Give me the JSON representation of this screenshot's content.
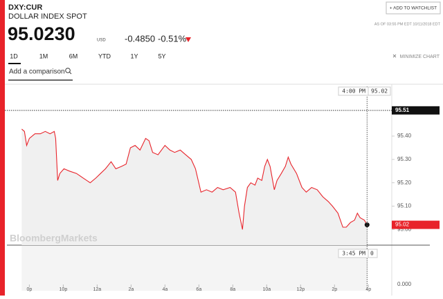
{
  "header": {
    "symbol": "DXY:CUR",
    "name": "DOLLAR INDEX SPOT",
    "price": "95.0230",
    "currency": "USD",
    "change": "-0.4850",
    "change_pct": "-0.51%",
    "timestamp": "AS OF 03:55 PM EDT 10/11/2018 EDT",
    "watchlist_button": "+ ADD TO WATCHLIST"
  },
  "tabs": [
    "1D",
    "1M",
    "6M",
    "YTD",
    "1Y",
    "5Y"
  ],
  "minimize": "MINIMIZE CHART",
  "comparison_placeholder": "Add a comparison",
  "watermark": "BloombergMarkets",
  "hover": {
    "time": "4:00 PM",
    "value": "95.02",
    "bottom_time": "3:45 PM",
    "bottom_value": "0"
  },
  "volume_axis_label": "0.000",
  "chart_data": {
    "type": "line",
    "color": "#e8232a",
    "x": [
      -0.45,
      -0.29,
      -0.16,
      0,
      0.33,
      0.65,
      0.94,
      1.22,
      1.47,
      1.55,
      1.67,
      1.8,
      2.04,
      2.37,
      2.78,
      3.18,
      3.59,
      3.92,
      4.2,
      4.49,
      4.82,
      5.1,
      5.43,
      5.71,
      5.96,
      6.24,
      6.53,
      6.86,
      7.06,
      7.27,
      7.59,
      8,
      8.29,
      8.57,
      8.9,
      9.22,
      9.55,
      9.8,
      10.12,
      10.45,
      10.78,
      11.1,
      11.43,
      11.84,
      12.16,
      12.37,
      12.57,
      12.69,
      12.86,
      13.06,
      13.31,
      13.47,
      13.71,
      13.88,
      14.04,
      14.2,
      14.45,
      14.61,
      14.86,
      15.1,
      15.27,
      15.43,
      15.76,
      16.08,
      16.33,
      16.65,
      16.98,
      17.31,
      17.63,
      17.88,
      18.2,
      18.49,
      18.69,
      18.94,
      19.18,
      19.35,
      19.51,
      19.76,
      19.92
    ],
    "values": [
      95.43,
      95.42,
      95.36,
      95.39,
      95.41,
      95.41,
      95.42,
      95.41,
      95.42,
      95.39,
      95.21,
      95.24,
      95.26,
      95.25,
      95.24,
      95.22,
      95.2,
      95.22,
      95.24,
      95.26,
      95.29,
      95.26,
      95.27,
      95.28,
      95.35,
      95.36,
      95.34,
      95.39,
      95.38,
      95.33,
      95.32,
      95.36,
      95.34,
      95.33,
      95.34,
      95.32,
      95.3,
      95.26,
      95.16,
      95.17,
      95.16,
      95.18,
      95.17,
      95.18,
      95.16,
      95.07,
      95,
      95.1,
      95.18,
      95.2,
      95.19,
      95.22,
      95.21,
      95.27,
      95.3,
      95.27,
      95.17,
      95.21,
      95.24,
      95.27,
      95.31,
      95.28,
      95.24,
      95.18,
      95.16,
      95.18,
      95.17,
      95.14,
      95.12,
      95.1,
      95.07,
      95.01,
      95.01,
      95.03,
      95.04,
      95.07,
      95.05,
      95.04,
      95.02
    ],
    "xlim": [
      -1.2,
      21.5
    ],
    "xticks": [
      {
        "value": 0,
        "label": "0p"
      },
      {
        "value": 2,
        "label": "10p"
      },
      {
        "value": 4,
        "label": "12a"
      },
      {
        "value": 6,
        "label": "2a"
      },
      {
        "value": 8,
        "label": "4a"
      },
      {
        "value": 10,
        "label": "6a"
      },
      {
        "value": 12,
        "label": "8a"
      },
      {
        "value": 14,
        "label": "10a"
      },
      {
        "value": 16,
        "label": "12p"
      },
      {
        "value": 18,
        "label": "2p"
      },
      {
        "value": 20,
        "label": "4p"
      }
    ],
    "ylim": [
      94.933,
      95.613
    ],
    "yticks": [
      {
        "value": 95.4,
        "label": "95.40"
      },
      {
        "value": 95.3,
        "label": "95.30"
      },
      {
        "value": 95.2,
        "label": "95.20"
      },
      {
        "value": 95.1,
        "label": "95.10"
      },
      {
        "value": 95,
        "label": "95.00"
      }
    ],
    "high": 95.51,
    "last": 95.02
  }
}
